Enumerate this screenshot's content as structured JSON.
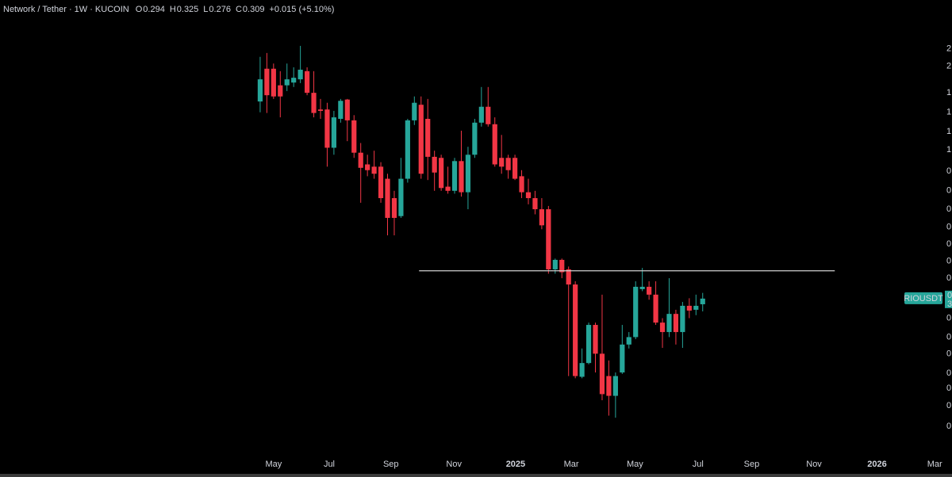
{
  "chart_data": {
    "type": "candlestick",
    "title": "Network / Tether · 1W · KUCOIN",
    "ohlc_letters": [
      "O",
      "H",
      "L",
      "C"
    ],
    "change_label": "+0.015 (+5.10%)",
    "up_color": "#26a69a",
    "down_color": "#f23645",
    "log_scale": true,
    "grid": false,
    "open": [
      1.76,
      2.35,
      2.35,
      2.03,
      2.03,
      2.08,
      2.14,
      2.3,
      1.9,
      1.64,
      1.64,
      1.17,
      1.51,
      1.79,
      1.49,
      1.12,
      1.01,
      0.99,
      0.99,
      0.89,
      0.75,
      0.64,
      0.89,
      1.49,
      1.71,
      1.51,
      1.08,
      1.07,
      0.83,
      0.8,
      1.04,
      0.79,
      1.1,
      1.46,
      1.68,
      1.44,
      1.07,
      1.07,
      1.07,
      0.91,
      0.79,
      0.75,
      0.68,
      0.68,
      0.4,
      0.435,
      0.4,
      0.35,
      0.155,
      0.175,
      0.245,
      0.19,
      0.156,
      0.131,
      0.161,
      0.206,
      0.22,
      0.336,
      0.343,
      0.32,
      0.25,
      0.23,
      0.27,
      0.23,
      0.29,
      0.28,
      0.294
    ],
    "high": [
      2.61,
      2.7,
      2.46,
      2.3,
      2.46,
      2.38,
      2.875,
      2.38,
      2.3,
      1.8,
      1.74,
      1.62,
      1.8,
      1.8,
      1.56,
      1.22,
      1.1,
      1.14,
      1.03,
      0.93,
      0.8,
      1.07,
      1.51,
      1.84,
      1.84,
      1.8,
      1.14,
      1.1,
      0.99,
      1.07,
      1.36,
      1.18,
      1.51,
      2.0,
      2.0,
      1.53,
      1.31,
      1.1,
      1.1,
      0.96,
      0.89,
      0.8,
      0.75,
      0.7,
      0.44,
      0.44,
      0.41,
      0.36,
      0.199,
      0.25,
      0.25,
      0.32,
      0.179,
      0.161,
      0.245,
      0.23,
      0.36,
      0.405,
      0.36,
      0.36,
      0.26,
      0.37,
      0.28,
      0.3,
      0.31,
      0.32,
      0.325
    ],
    "low": [
      1.6,
      1.59,
      1.8,
      1.53,
      1.93,
      2.0,
      2.07,
      1.86,
      1.53,
      1.51,
      0.99,
      1.1,
      1.46,
      1.24,
      1.07,
      0.72,
      0.91,
      0.89,
      0.72,
      0.54,
      0.54,
      0.63,
      0.86,
      1.43,
      0.89,
      0.88,
      0.8,
      0.8,
      0.78,
      0.78,
      0.76,
      0.68,
      1.07,
      1.41,
      1.41,
      0.99,
      0.93,
      0.89,
      0.88,
      0.75,
      0.71,
      0.65,
      0.57,
      0.385,
      0.385,
      0.37,
      0.156,
      0.153,
      0.153,
      0.173,
      0.161,
      0.126,
      0.11,
      0.108,
      0.159,
      0.199,
      0.216,
      0.33,
      0.306,
      0.245,
      0.2,
      0.22,
      0.206,
      0.2,
      0.26,
      0.267,
      0.276
    ],
    "close": [
      2.14,
      1.86,
      1.84,
      1.84,
      2.14,
      2.17,
      2.33,
      1.9,
      1.59,
      1.62,
      1.17,
      1.53,
      1.77,
      1.49,
      1.12,
      0.98,
      0.96,
      0.93,
      0.75,
      0.63,
      0.63,
      0.89,
      1.49,
      1.74,
      0.93,
      1.08,
      0.94,
      0.82,
      0.8,
      1.04,
      0.79,
      1.1,
      1.46,
      1.68,
      1.44,
      1.01,
      0.99,
      0.96,
      0.89,
      0.79,
      0.75,
      0.68,
      0.59,
      0.4,
      0.435,
      0.39,
      0.35,
      0.156,
      0.175,
      0.245,
      0.19,
      0.133,
      0.131,
      0.156,
      0.206,
      0.22,
      0.343,
      0.343,
      0.32,
      0.25,
      0.23,
      0.27,
      0.23,
      0.29,
      0.278,
      0.29,
      0.309
    ],
    "ylim": [
      0.0773,
      4.31
    ],
    "yticks": [
      {
        "value": 2.8,
        "label": "2"
      },
      {
        "value": 2.4,
        "label": "2"
      },
      {
        "value": 1.9,
        "label": "1"
      },
      {
        "value": 1.6,
        "label": "1"
      },
      {
        "value": 1.35,
        "label": "1"
      },
      {
        "value": 1.15,
        "label": "1"
      },
      {
        "value": 0.95,
        "label": "0"
      },
      {
        "value": 0.8,
        "label": "0"
      },
      {
        "value": 0.68,
        "label": "0"
      },
      {
        "value": 0.58,
        "label": "0"
      },
      {
        "value": 0.5,
        "label": "0"
      },
      {
        "value": 0.43,
        "label": "0"
      },
      {
        "value": 0.37,
        "label": "0"
      },
      {
        "value": 0.26,
        "label": "0"
      },
      {
        "value": 0.22,
        "label": "0"
      },
      {
        "value": 0.19,
        "label": "0"
      },
      {
        "value": 0.16,
        "label": "0"
      },
      {
        "value": 0.14,
        "label": "0"
      },
      {
        "value": 0.12,
        "label": "0"
      },
      {
        "value": 0.1,
        "label": "0"
      }
    ],
    "xlim": [
      -38.8,
      102.0
    ],
    "xticks": [
      {
        "value": 2.0,
        "label": "May"
      },
      {
        "value": 10.3,
        "label": "Jul"
      },
      {
        "value": 19.5,
        "label": "Sep"
      },
      {
        "value": 28.9,
        "label": "Nov"
      },
      {
        "value": 38.1,
        "label": "2025"
      },
      {
        "value": 46.4,
        "label": "Mar"
      },
      {
        "value": 55.9,
        "label": "May"
      },
      {
        "value": 65.3,
        "label": "Jul"
      },
      {
        "value": 73.3,
        "label": "Sep"
      },
      {
        "value": 82.6,
        "label": "Nov"
      },
      {
        "value": 92.0,
        "label": "2026"
      },
      {
        "value": 100.6,
        "label": "Mar"
      }
    ],
    "hline": {
      "value": 0.395,
      "x0": 23.7,
      "x1": 85.7,
      "color": "#d0d0d0"
    },
    "price_tag": {
      "label": "RIOUSDT",
      "lines": [
        "0",
        "3"
      ]
    }
  }
}
